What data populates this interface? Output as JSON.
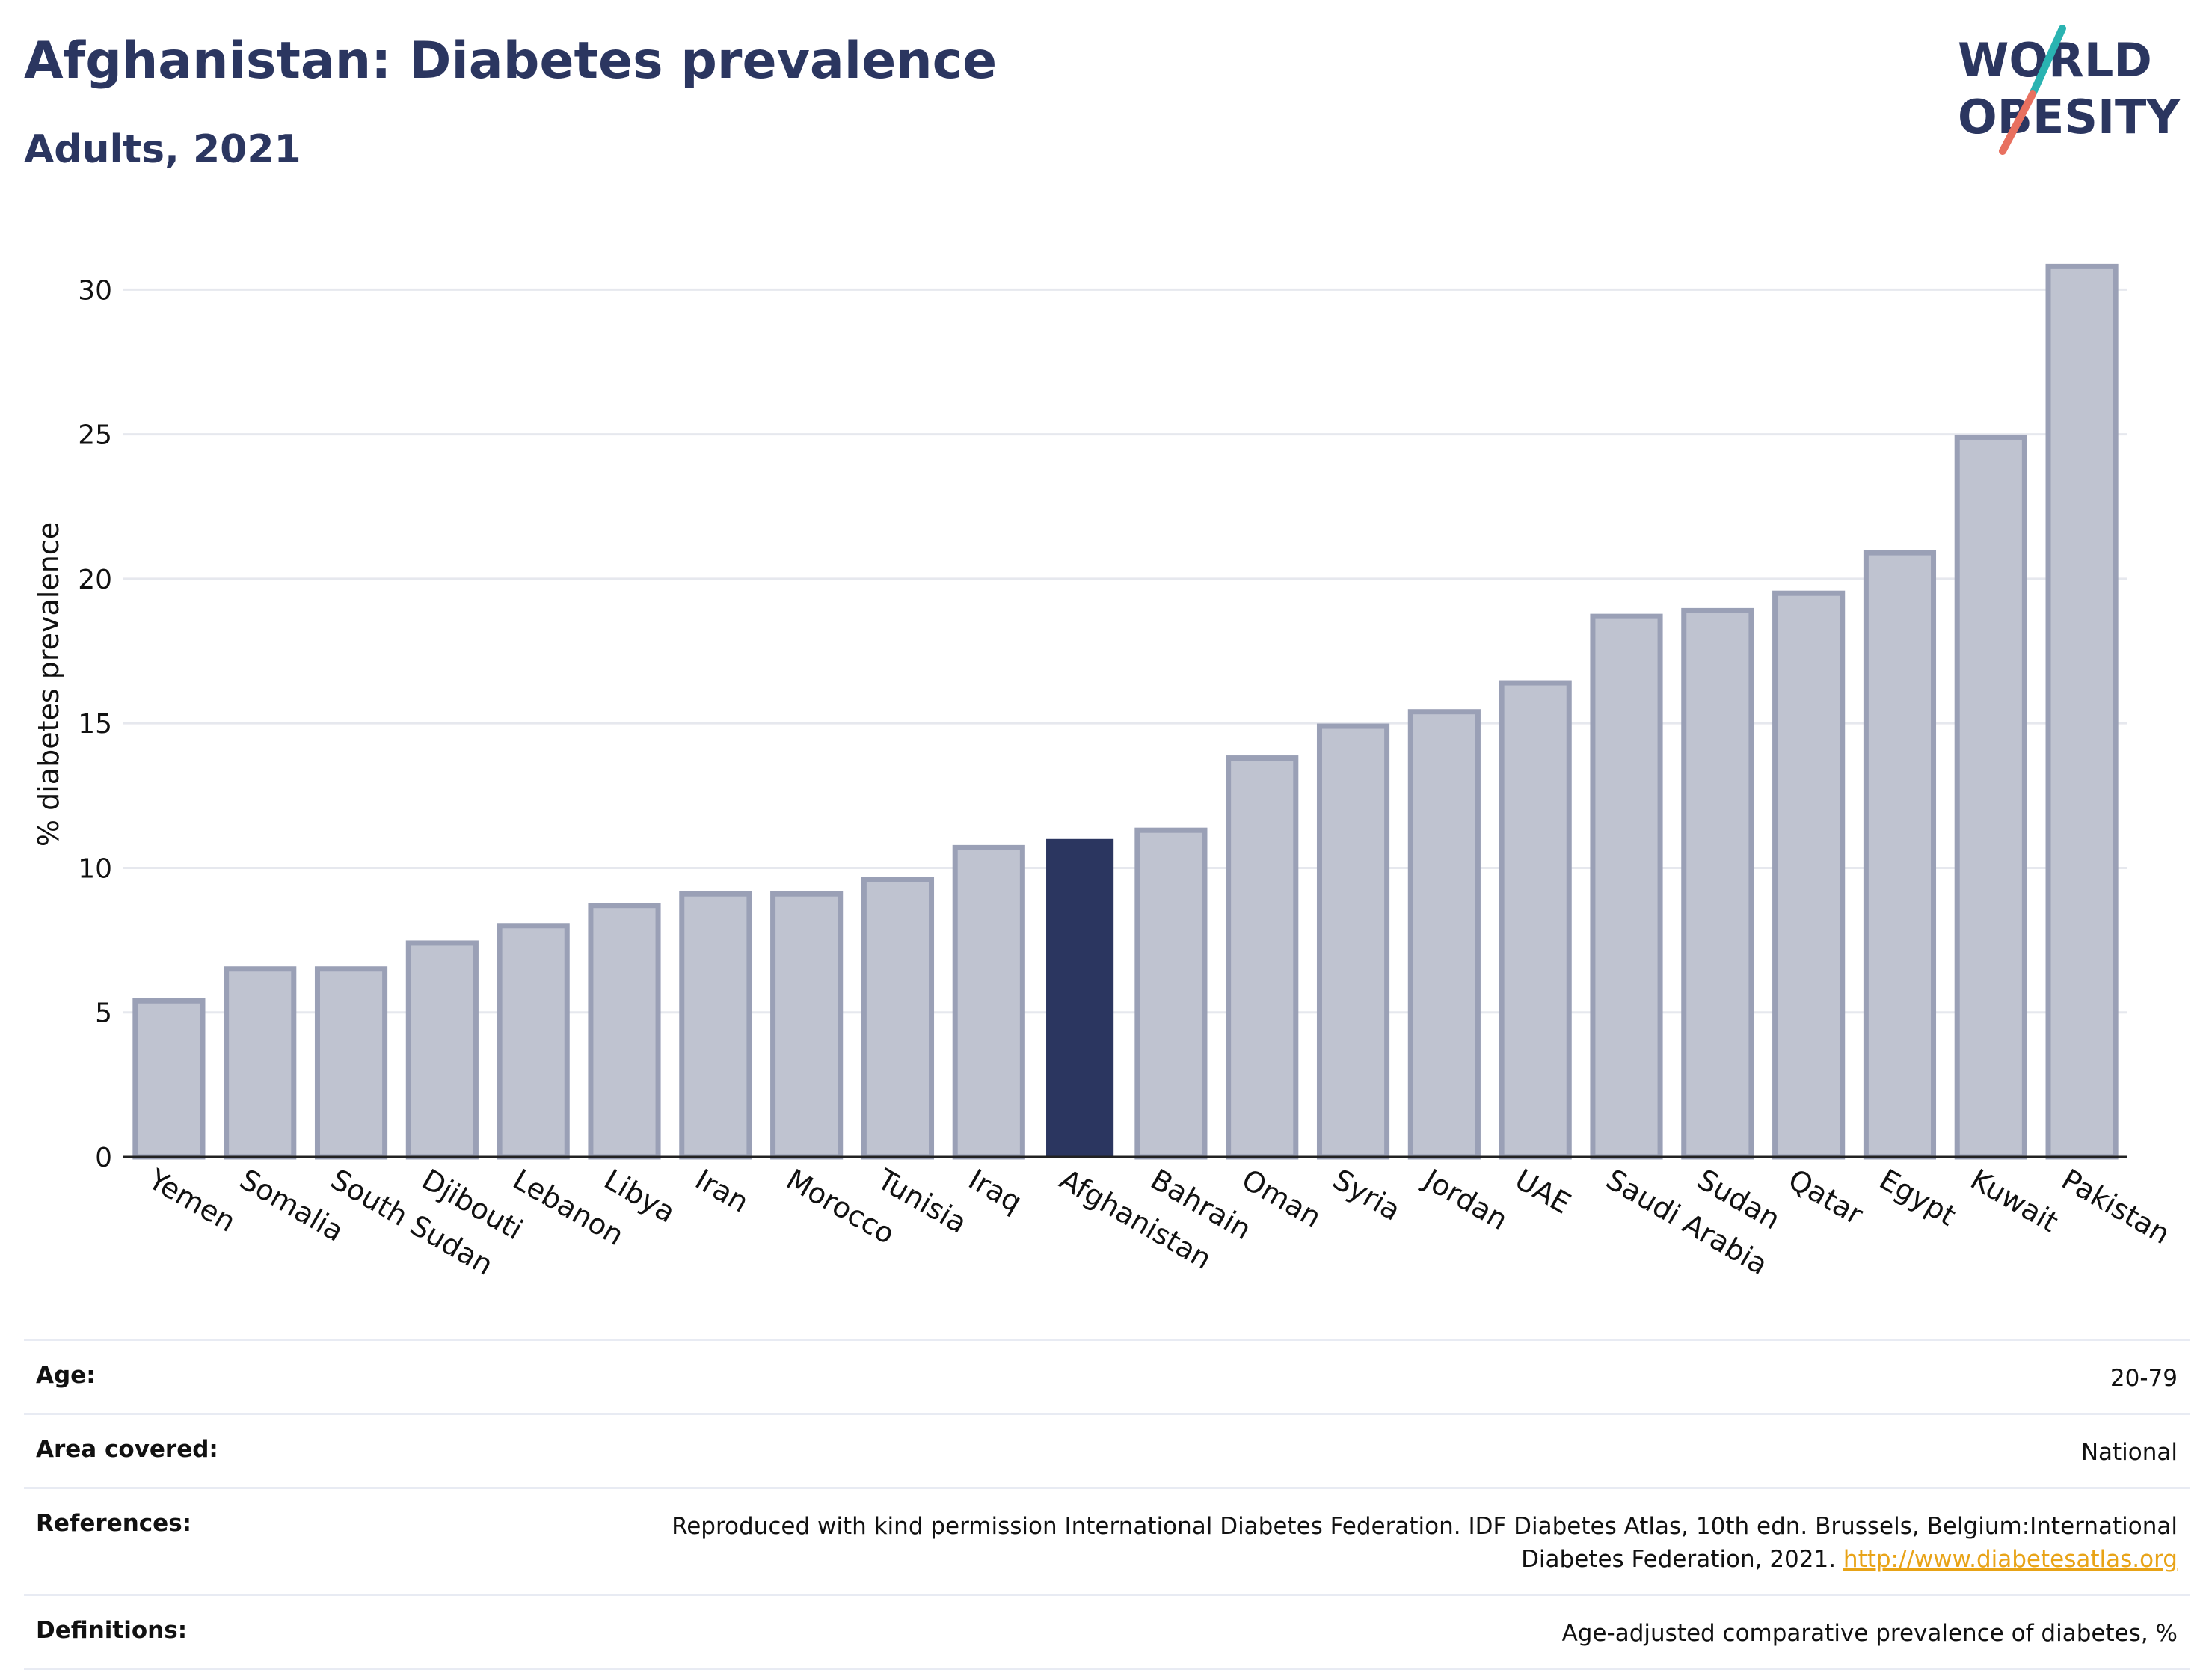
{
  "header": {
    "title": "Afghanistan: Diabetes prevalence",
    "subtitle": "Adults, 2021"
  },
  "logo": {
    "line1": "WORLD",
    "line2": "OBESITY",
    "slash_colors": [
      "#2ab3b1",
      "#e8705f"
    ],
    "text_color": "#2b3660"
  },
  "chart_data": {
    "type": "bar",
    "title": "",
    "xlabel": "",
    "ylabel": "% diabetes prevalence",
    "ylim": [
      0,
      32
    ],
    "yticks": [
      0,
      5,
      10,
      15,
      20,
      25,
      30
    ],
    "grid": true,
    "categories": [
      "Yemen",
      "Somalia",
      "South Sudan",
      "Djibouti",
      "Lebanon",
      "Libya",
      "Iran",
      "Morocco",
      "Tunisia",
      "Iraq",
      "Afghanistan",
      "Bahrain",
      "Oman",
      "Syria",
      "Jordan",
      "UAE",
      "Saudi Arabia",
      "Sudan",
      "Qatar",
      "Egypt",
      "Kuwait",
      "Pakistan"
    ],
    "values": [
      5.4,
      6.5,
      6.5,
      7.4,
      8.0,
      8.7,
      9.1,
      9.1,
      9.6,
      10.7,
      11.0,
      11.3,
      13.8,
      14.9,
      15.4,
      16.4,
      18.7,
      18.9,
      19.5,
      20.9,
      24.9,
      30.8
    ],
    "highlight": "Afghanistan",
    "colors": {
      "bar": "#bfc3d0",
      "bar_border": "#9aa0b6",
      "highlight": "#2b3660"
    }
  },
  "meta": [
    {
      "label": "Age:",
      "value": "20-79"
    },
    {
      "label": "Area covered:",
      "value": "National"
    },
    {
      "label": "References:",
      "value": "Reproduced with kind permission International Diabetes Federation.  IDF Diabetes Atlas, 10th edn. Brussels, Belgium:International Diabetes Federation, 2021.",
      "link": "http://www.diabetesatlas.org"
    },
    {
      "label": "Definitions:",
      "value": "Age-adjusted comparative prevalence of diabetes, %"
    }
  ]
}
